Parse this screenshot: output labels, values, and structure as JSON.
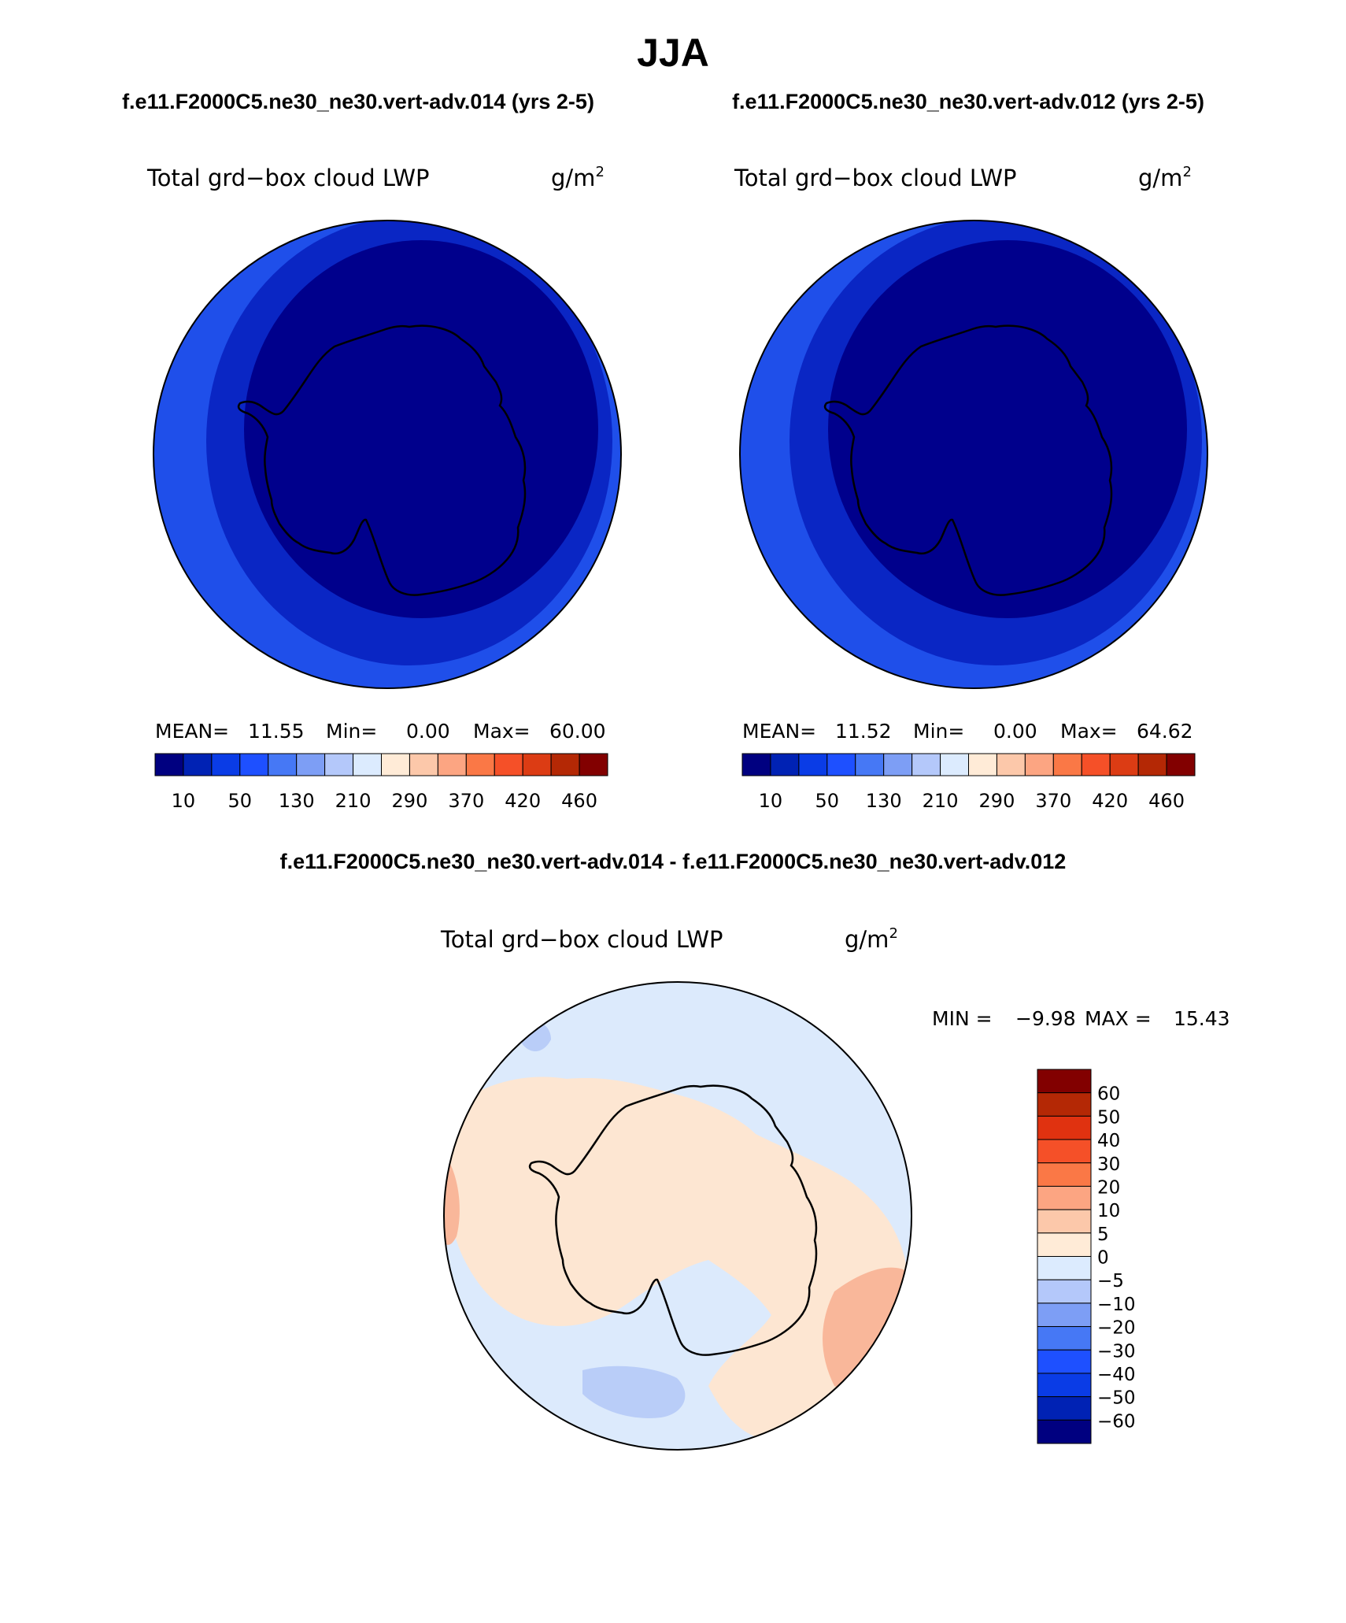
{
  "title": "JJA",
  "case1_title": "f.e11.F2000C5.ne30_ne30.vert-adv.014 (yrs 2-5)",
  "case2_title": "f.e11.F2000C5.ne30_ne30.vert-adv.012 (yrs 2-5)",
  "diff_title": "f.e11.F2000C5.ne30_ne30.vert-adv.014 - f.e11.F2000C5.ne30_ne30.vert-adv.012",
  "variable_label": "Total grd−box cloud LWP",
  "units_base": "g/m",
  "units_exp": "2",
  "panels": [
    {
      "mean_label": "MEAN=",
      "mean": "11.55",
      "min_label": "Min=",
      "min": "0.00",
      "max_label": "Max=",
      "max": "60.00"
    },
    {
      "mean_label": "MEAN=",
      "mean": "11.52",
      "min_label": "Min=",
      "min": "0.00",
      "max_label": "Max=",
      "max": "64.62"
    }
  ],
  "colorbar_ticks": [
    "10",
    "50",
    "130",
    "210",
    "290",
    "370",
    "420",
    "460"
  ],
  "colorbar_colors": [
    "#000080",
    "#0022b4",
    "#0a3ce6",
    "#1e50ff",
    "#4678f5",
    "#7d9ef5",
    "#b4c8fa",
    "#dcebfe",
    "#ffebd7",
    "#fcc8aa",
    "#fca582",
    "#fa7846",
    "#f55028",
    "#dc3c14",
    "#b42805",
    "#820000"
  ],
  "diff_stats": {
    "min_label": "MIN =",
    "min": "−9.98",
    "max_label": "MAX =",
    "max": "15.43"
  },
  "diff_colorbar_labels": [
    "60",
    "50",
    "40",
    "30",
    "20",
    "10",
    "5",
    "0",
    "−5",
    "−10",
    "−20",
    "−30",
    "−40",
    "−50",
    "−60"
  ],
  "diff_colorbar_colors": [
    "#820000",
    "#b42805",
    "#e03210",
    "#f55028",
    "#fa7846",
    "#fca582",
    "#fcc8aa",
    "#ffebd7",
    "#dcebfe",
    "#b4c8fa",
    "#7d9ef5",
    "#4678f5",
    "#1e50ff",
    "#0a3ce6",
    "#0022b4",
    "#000080"
  ],
  "colors": {
    "map_inner": "#00008c",
    "map_mid": "#0a26c4",
    "map_outer": "#1f4fea",
    "diff_bg": "#dceafc",
    "diff_pos": "#fde6d2",
    "diff_pos2": "#f9b79a",
    "diff_neg": "#b9cdf8"
  }
}
